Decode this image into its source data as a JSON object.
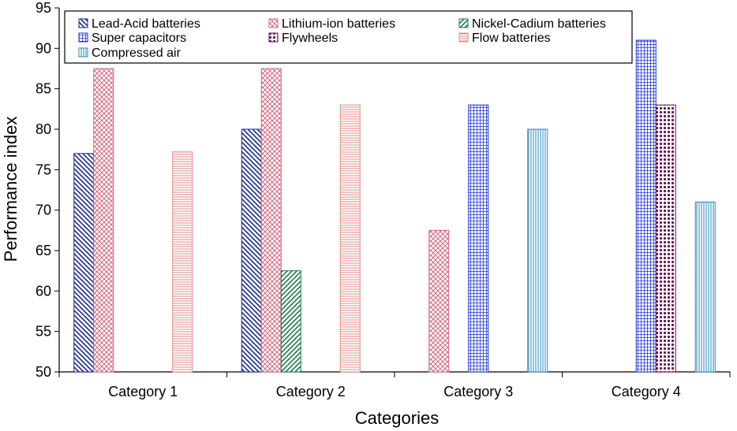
{
  "chart_data": {
    "type": "bar",
    "title": "",
    "xlabel": "Categories",
    "ylabel": "Performance index",
    "ylim": [
      50,
      95
    ],
    "ytick_step": 5,
    "categories": [
      "Category 1",
      "Category 2",
      "Category 3",
      "Category 4"
    ],
    "grid": false,
    "legend_position": "top",
    "series": [
      {
        "name": "Lead-Acid batteries",
        "values": [
          77,
          80,
          null,
          null
        ],
        "color": "#1a2a8c",
        "pattern": "diagonal-back"
      },
      {
        "name": "Lithium-ion batteries",
        "values": [
          87.5,
          87.5,
          67.5,
          null
        ],
        "color": "#d4687e",
        "pattern": "crosshatch-diagonal"
      },
      {
        "name": "Nickel-Cadium batteries",
        "values": [
          null,
          62.5,
          null,
          null
        ],
        "color": "#1f7a4a",
        "pattern": "diagonal-forward"
      },
      {
        "name": "Super capacitors",
        "values": [
          null,
          null,
          83,
          91
        ],
        "color": "#1f35d6",
        "pattern": "grid"
      },
      {
        "name": "Flywheels",
        "values": [
          null,
          null,
          null,
          83
        ],
        "color": "#6a0f5a",
        "pattern": "dots"
      },
      {
        "name": "Flow batteries",
        "values": [
          77.2,
          83,
          null,
          null
        ],
        "color": "#e28a8a",
        "pattern": "horizontal"
      },
      {
        "name": "Compressed air",
        "values": [
          null,
          null,
          80,
          71
        ],
        "color": "#2a8ab8",
        "pattern": "vertical"
      }
    ]
  }
}
